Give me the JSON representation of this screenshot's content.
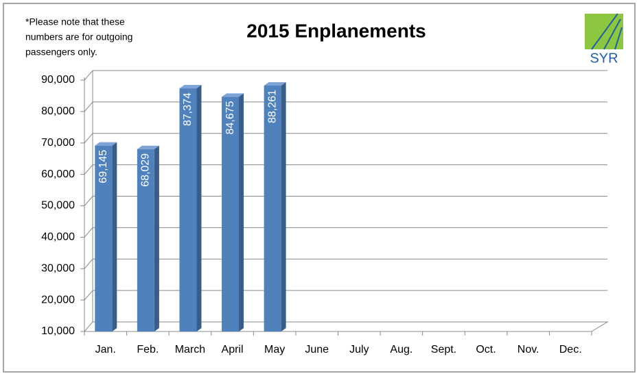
{
  "chart_data": {
    "type": "bar3d",
    "title": "2015 Enplanements",
    "annotation": [
      "*Please note that these",
      "numbers are for outgoing",
      "passengers only."
    ],
    "logo_text": "SYR",
    "categories": [
      "Jan.",
      "Feb.",
      "March",
      "April",
      "May",
      "June",
      "July",
      "Aug.",
      "Sept.",
      "Oct.",
      "Nov.",
      "Dec."
    ],
    "values": [
      69145,
      68029,
      87374,
      84675,
      88261,
      null,
      null,
      null,
      null,
      null,
      null,
      null
    ],
    "value_labels": [
      "69,145",
      "68,029",
      "87,374",
      "84,675",
      "88,261",
      null,
      null,
      null,
      null,
      null,
      null,
      null
    ],
    "color": "#4f81bd",
    "ylim": [
      10000,
      90000
    ],
    "yticks": [
      {
        "value": 10000,
        "label": "10,000"
      },
      {
        "value": 20000,
        "label": "20,000"
      },
      {
        "value": 30000,
        "label": "30,000"
      },
      {
        "value": 40000,
        "label": "40,000"
      },
      {
        "value": 50000,
        "label": "50,000"
      },
      {
        "value": 60000,
        "label": "60,000"
      },
      {
        "value": 70000,
        "label": "70,000"
      },
      {
        "value": 80000,
        "label": "80,000"
      },
      {
        "value": 90000,
        "label": "90,000"
      }
    ],
    "grid": true
  }
}
